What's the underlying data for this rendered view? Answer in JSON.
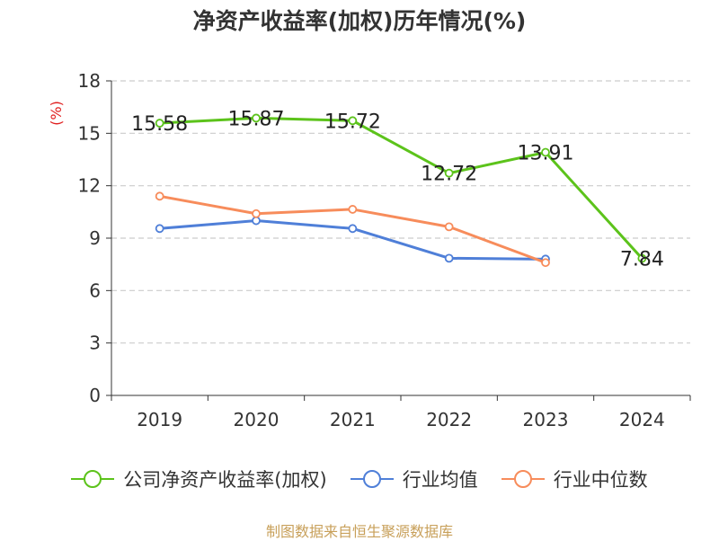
{
  "chart_data": {
    "type": "line",
    "title": "净资产收益率(加权)历年情况(%)",
    "ylabel": "(%)",
    "categories": [
      "2019",
      "2020",
      "2021",
      "2022",
      "2023",
      "2024"
    ],
    "ylim": [
      0,
      18
    ],
    "yticks": [
      0,
      3,
      6,
      9,
      12,
      15,
      18
    ],
    "grid": true,
    "legend_position": "bottom",
    "series": [
      {
        "name": "公司净资产收益率(加权)",
        "color": "#5cc31b",
        "values": [
          15.58,
          15.87,
          15.72,
          12.72,
          13.91,
          7.84
        ],
        "data_labels": [
          "15.58",
          "15.87",
          "15.72",
          "12.72",
          "13.91",
          "7.84"
        ]
      },
      {
        "name": "行业均值",
        "color": "#4f7fd8",
        "values": [
          9.55,
          10.0,
          9.55,
          7.85,
          7.8,
          null
        ]
      },
      {
        "name": "行业中位数",
        "color": "#f78c5b",
        "values": [
          11.4,
          10.4,
          10.65,
          9.65,
          7.6,
          null
        ]
      }
    ]
  },
  "source": "制图数据来自恒生聚源数据库",
  "colors": {
    "grid": "#cccccc",
    "axis": "#333333",
    "ylabel": "#e02020"
  }
}
